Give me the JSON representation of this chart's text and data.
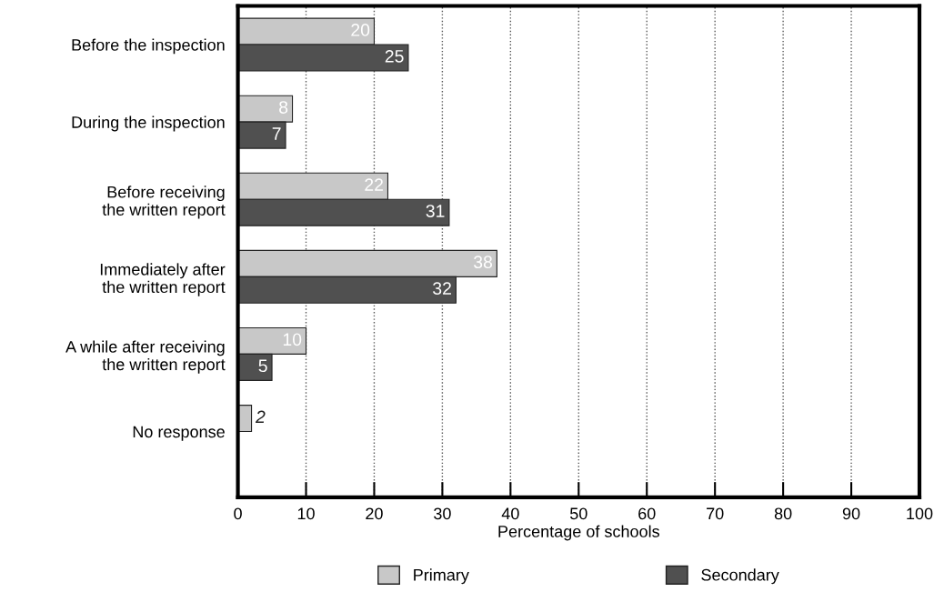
{
  "chart_data": {
    "type": "bar",
    "orientation": "horizontal",
    "xlabel": "Percentage of schools",
    "categories": [
      "Before the inspection",
      "During the inspection",
      "Before receiving\nthe written report",
      "Immediately after\nthe written report",
      "A while after receiving\nthe written report",
      "No response"
    ],
    "series": [
      {
        "name": "Primary",
        "color": "#c8c8c8",
        "values": [
          20,
          8,
          22,
          38,
          10,
          2
        ]
      },
      {
        "name": "Secondary",
        "color": "#505050",
        "values": [
          25,
          7,
          31,
          32,
          5,
          null
        ]
      }
    ],
    "xlim": [
      0,
      100
    ],
    "xticks": [
      0,
      10,
      20,
      30,
      40,
      50,
      60,
      70,
      80,
      90,
      100
    ],
    "grid": "x",
    "legend": "bottom",
    "data_labels": true
  }
}
